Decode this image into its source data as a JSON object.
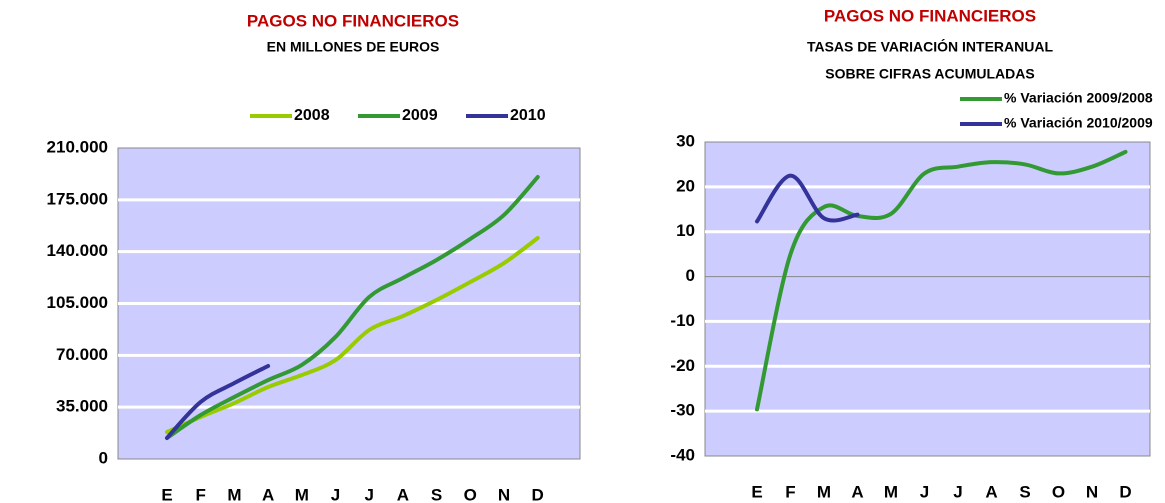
{
  "chart_data": [
    {
      "type": "line",
      "title": "PAGOS NO FINANCIEROS",
      "subtitle": [
        "EN MILLONES DE EUROS"
      ],
      "categories": [
        "E",
        "F",
        "M",
        "A",
        "M",
        "J",
        "J",
        "A",
        "S",
        "O",
        "N",
        "D"
      ],
      "series": [
        {
          "name": "2008",
          "color": "#99cc00",
          "values": [
            18200,
            28400,
            37800,
            48600,
            56700,
            66800,
            87100,
            96500,
            107400,
            119500,
            132300,
            149200
          ]
        },
        {
          "name": "2009",
          "color": "#339933",
          "values": [
            14200,
            29700,
            41900,
            53300,
            63500,
            82400,
            109400,
            122200,
            134400,
            148600,
            164800,
            190400
          ]
        },
        {
          "name": "2010",
          "color": "#333399",
          "values": [
            14200,
            38500,
            51300,
            62800,
            null,
            null,
            null,
            null,
            null,
            null,
            null,
            null
          ]
        }
      ],
      "ylim": [
        0,
        210000
      ],
      "yticks": [
        0,
        {
          "value": 35000,
          "label": "35.000"
        },
        {
          "value": 70000,
          "label": "70.000"
        },
        {
          "value": 105000,
          "label": "105.000"
        },
        {
          "value": 140000,
          "label": "140.000"
        },
        {
          "value": 175000,
          "label": "175.000"
        },
        {
          "value": 210000,
          "label": "210.000"
        }
      ],
      "grid": true,
      "legend": "top",
      "background": "#ccccff"
    },
    {
      "type": "line",
      "title": "PAGOS NO FINANCIEROS",
      "subtitle": [
        "TASAS DE VARIACIÓN INTERANUAL",
        "SOBRE CIFRAS ACUMULADAS"
      ],
      "categories": [
        "E",
        "F",
        "M",
        "A",
        "M",
        "J",
        "J",
        "A",
        "S",
        "O",
        "N",
        "D"
      ],
      "series": [
        {
          "name": "% Variación 2009/2008",
          "color": "#339933",
          "values": [
            -29.6,
            5,
            15.5,
            13.5,
            14,
            23,
            24.5,
            25.5,
            25,
            23,
            24.5,
            27.8
          ]
        },
        {
          "name": "% Variación 2010/2009",
          "color": "#333399",
          "values": [
            12.3,
            22.5,
            13,
            13.8,
            null,
            null,
            null,
            null,
            null,
            null,
            null,
            null
          ]
        }
      ],
      "ylim": [
        -40,
        30
      ],
      "yticks": [
        -40,
        -30,
        -20,
        -10,
        0,
        10,
        20,
        30
      ],
      "grid": true,
      "zero_line": true,
      "legend": "top-right",
      "background": "#ccccff"
    }
  ]
}
